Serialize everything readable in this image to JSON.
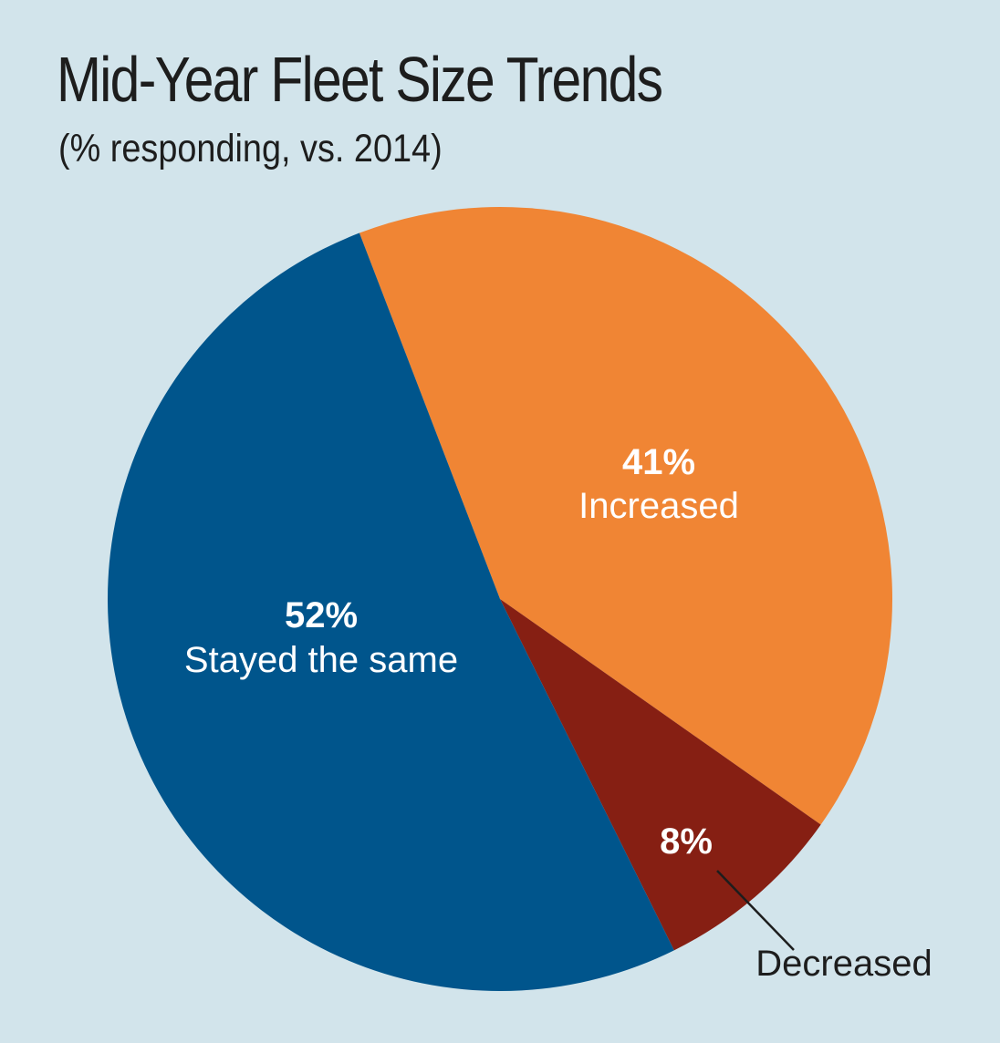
{
  "chart_data": {
    "type": "pie",
    "title": "Mid-Year Fleet Size Trends",
    "subtitle": "(% responding, vs. 2014)",
    "slices": [
      {
        "label": "Increased",
        "value": 41,
        "value_label": "41%",
        "color": "#f08534"
      },
      {
        "label": "Decreased",
        "value": 8,
        "value_label": "8%",
        "color": "#861f13"
      },
      {
        "label": "Stayed the same",
        "value": 52,
        "value_label": "52%",
        "color": "#00558c"
      }
    ],
    "background_color": "#d2e4eb"
  }
}
